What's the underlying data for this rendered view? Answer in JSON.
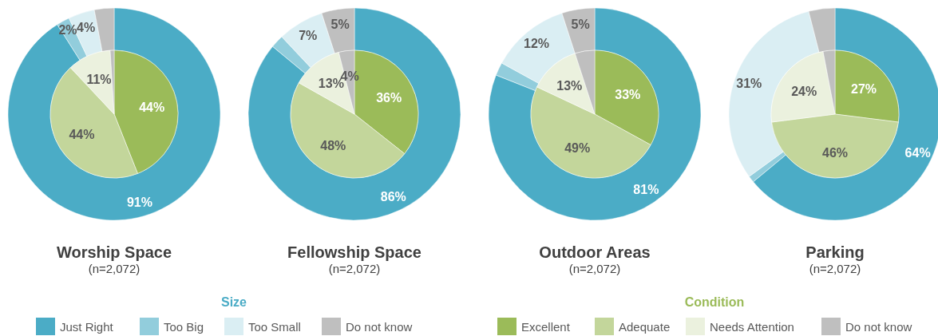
{
  "chart_data": [
    {
      "type": "donut",
      "title": "Worship Space",
      "subtitle": "(n=2,072)",
      "legend": "bottom",
      "legend_title": "Size",
      "categories": [
        "Just Right",
        "Too Big",
        "Too Small",
        "Do not know"
      ],
      "values": [
        91,
        2,
        4,
        3
      ],
      "value_labels": [
        "91%",
        "2%",
        "4%",
        null
      ],
      "colors": [
        "#4bacc6",
        "#92cddc",
        "#daeef3",
        "#bfbfbf"
      ]
    },
    {
      "type": "pie",
      "categories": [
        null,
        null,
        null,
        null
      ],
      "values": [
        44,
        44,
        11,
        1
      ],
      "value_labels": [
        "44%",
        "44%",
        "11%",
        null
      ],
      "colors": [
        "#9bbb59",
        "#c3d69b",
        "#ebf1de",
        "#bfbfbf"
      ]
    },
    {
      "type": "donut",
      "title": "Fellowship Space",
      "subtitle": "(n=2,072)",
      "categories": [
        null,
        null,
        null,
        null
      ],
      "values": [
        86,
        2,
        7,
        5
      ],
      "value_labels": [
        "86%",
        null,
        "7%",
        "5%"
      ],
      "colors": [
        "#4bacc6",
        "#92cddc",
        "#daeef3",
        "#bfbfbf"
      ]
    },
    {
      "type": "pie",
      "categories": [
        null,
        null,
        null,
        null
      ],
      "values": [
        36,
        48,
        13,
        4
      ],
      "value_labels": [
        "36%",
        "48%",
        "13%",
        "4%"
      ],
      "colors": [
        "#9bbb59",
        "#c3d69b",
        "#ebf1de",
        "#bfbfbf"
      ]
    },
    {
      "type": "donut",
      "title": "Outdoor Areas",
      "subtitle": "(n=2,072)",
      "categories": [
        null,
        null,
        null,
        null
      ],
      "values": [
        81,
        2,
        12,
        5
      ],
      "value_labels": [
        "81%",
        null,
        "12%",
        "5%"
      ],
      "colors": [
        "#4bacc6",
        "#92cddc",
        "#daeef3",
        "#bfbfbf"
      ]
    },
    {
      "type": "pie",
      "legend": "bottom",
      "legend_title": "Condition",
      "categories": [
        "Excellent",
        "Adequate",
        "Needs Attention",
        "Do not know"
      ],
      "values": [
        33,
        49,
        13,
        5
      ],
      "value_labels": [
        "33%",
        "49%",
        "13%",
        null
      ],
      "colors": [
        "#9bbb59",
        "#c3d69b",
        "#ebf1de",
        "#bfbfbf"
      ]
    },
    {
      "type": "donut",
      "title": "Parking",
      "subtitle": "(n=2,072)",
      "categories": [
        null,
        null,
        null,
        null
      ],
      "values": [
        64,
        1,
        31,
        4
      ],
      "value_labels": [
        "64%",
        null,
        "31%",
        null
      ],
      "colors": [
        "#4bacc6",
        "#92cddc",
        "#daeef3",
        "#bfbfbf"
      ]
    },
    {
      "type": "pie",
      "categories": [
        null,
        null,
        null,
        null
      ],
      "values": [
        27,
        46,
        24,
        3
      ],
      "value_labels": [
        "27%",
        "46%",
        "24%",
        null
      ],
      "colors": [
        "#9bbb59",
        "#c3d69b",
        "#ebf1de",
        "#bfbfbf"
      ]
    }
  ]
}
